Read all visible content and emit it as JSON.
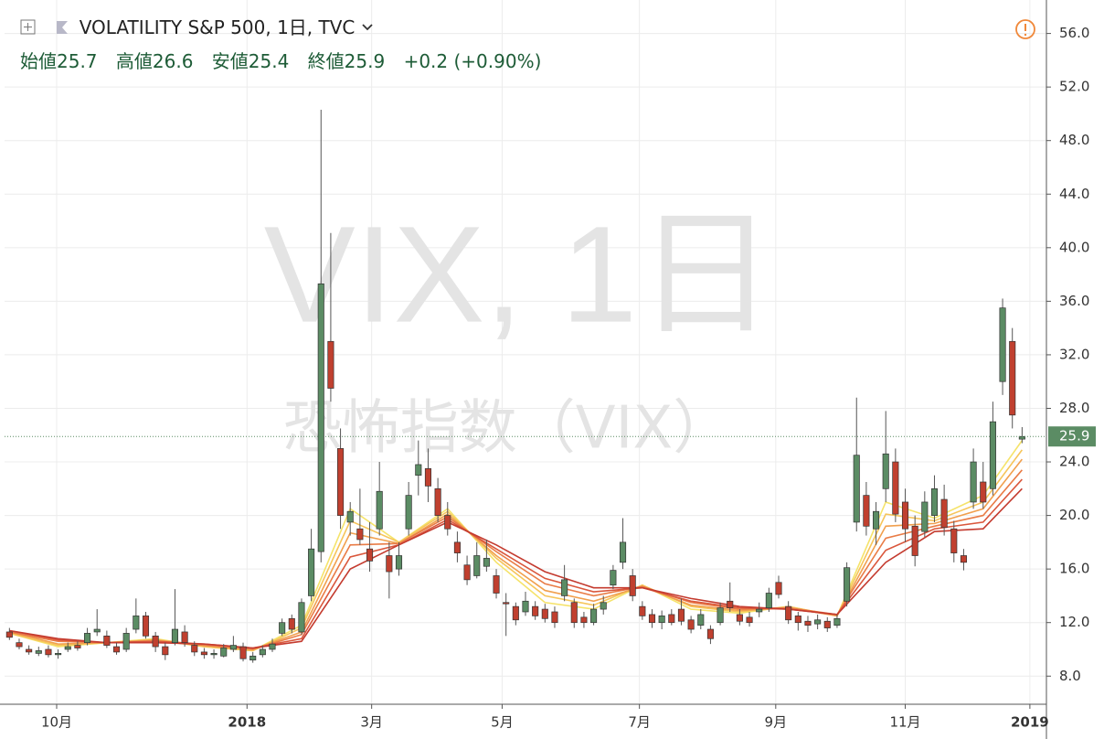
{
  "chart_data": {
    "type": "candlestick",
    "title": "VOLATILITY S&P 500, 1日, TVC",
    "watermark": "VIX, 1日",
    "watermark_sub": "恐怖指数（VIX）",
    "ohlc_legend": {
      "open_label": "始値",
      "open": 25.7,
      "high_label": "高値",
      "high": 26.6,
      "low_label": "安値",
      "low": 25.4,
      "close_label": "終値",
      "close": 25.9,
      "change": "+0.2",
      "change_pct": "(+0.90%)"
    },
    "up_color": "#5b8c64",
    "down_color": "#c0402f",
    "grid": true,
    "xlim": [
      0,
      107
    ],
    "xticks": [
      {
        "value": 5.35,
        "label": "10月"
      },
      {
        "value": 24.9,
        "label": "2018"
      },
      {
        "value": 37.7,
        "label": "3月"
      },
      {
        "value": 51.1,
        "label": "5月"
      },
      {
        "value": 65.2,
        "label": "7月"
      },
      {
        "value": 79.2,
        "label": "9月"
      },
      {
        "value": 92.5,
        "label": "11月"
      },
      {
        "value": 105.3,
        "label": "2019"
      }
    ],
    "ylim": [
      5.9,
      58.5
    ],
    "yticks": [
      {
        "value": 8,
        "label": "8.0"
      },
      {
        "value": 12,
        "label": "12.0"
      },
      {
        "value": 16,
        "label": "16.0"
      },
      {
        "value": 20,
        "label": "20.0"
      },
      {
        "value": 24,
        "label": "24.0"
      },
      {
        "value": 28,
        "label": "28.0"
      },
      {
        "value": 32,
        "label": "32.0"
      },
      {
        "value": 36,
        "label": "36.0"
      },
      {
        "value": 40,
        "label": "40.0"
      },
      {
        "value": 44,
        "label": "44.0"
      },
      {
        "value": 48,
        "label": "48.0"
      },
      {
        "value": 52,
        "label": "52.0"
      },
      {
        "value": 56,
        "label": "56.0"
      }
    ],
    "candles": [
      [
        11.3,
        11.6,
        10.7,
        10.9
      ],
      [
        10.5,
        10.8,
        10.0,
        10.2
      ],
      [
        10.0,
        10.3,
        9.6,
        9.8
      ],
      [
        9.7,
        10.2,
        9.5,
        9.9
      ],
      [
        10.0,
        10.3,
        9.4,
        9.6
      ],
      [
        9.6,
        10.0,
        9.3,
        9.7
      ],
      [
        10.0,
        10.5,
        9.8,
        10.2
      ],
      [
        10.3,
        10.6,
        9.9,
        10.1
      ],
      [
        10.5,
        11.6,
        10.3,
        11.2
      ],
      [
        11.3,
        13.0,
        11.0,
        11.5
      ],
      [
        11.0,
        11.4,
        10.1,
        10.3
      ],
      [
        10.2,
        10.5,
        9.6,
        9.8
      ],
      [
        10.0,
        11.6,
        9.8,
        11.2
      ],
      [
        11.5,
        13.8,
        11.2,
        12.5
      ],
      [
        12.5,
        12.8,
        10.8,
        11.0
      ],
      [
        11.0,
        11.3,
        9.8,
        10.2
      ],
      [
        10.2,
        10.5,
        9.2,
        9.6
      ],
      [
        10.5,
        14.5,
        10.3,
        11.5
      ],
      [
        11.3,
        11.8,
        10.2,
        10.5
      ],
      [
        10.3,
        10.6,
        9.5,
        9.8
      ],
      [
        9.8,
        10.1,
        9.3,
        9.6
      ],
      [
        9.6,
        10.0,
        9.3,
        9.7
      ],
      [
        9.5,
        10.4,
        9.4,
        10.1
      ],
      [
        10.0,
        11.0,
        9.8,
        10.3
      ],
      [
        10.2,
        10.5,
        9.1,
        9.3
      ],
      [
        9.2,
        9.8,
        9.0,
        9.5
      ],
      [
        9.6,
        10.3,
        9.4,
        10.0
      ],
      [
        10.0,
        10.8,
        9.8,
        10.4
      ],
      [
        11.2,
        12.3,
        11.0,
        12.0
      ],
      [
        12.3,
        12.6,
        11.2,
        11.5
      ],
      [
        11.3,
        13.8,
        11.1,
        13.5
      ],
      [
        14.0,
        19.0,
        13.6,
        17.5
      ],
      [
        17.3,
        50.3,
        16.5,
        37.3
      ],
      [
        33.0,
        41.1,
        28.5,
        29.5
      ],
      [
        25.0,
        26.5,
        19.0,
        20.0
      ],
      [
        19.5,
        21.0,
        18.5,
        20.3
      ],
      [
        19.0,
        22.0,
        17.8,
        18.2
      ],
      [
        17.5,
        19.5,
        15.8,
        16.6
      ],
      [
        19.0,
        24.0,
        18.5,
        21.8
      ],
      [
        17.0,
        18.0,
        13.8,
        15.8
      ],
      [
        16.0,
        18.0,
        15.5,
        17.0
      ],
      [
        19.0,
        22.5,
        18.5,
        21.5
      ],
      [
        23.0,
        25.6,
        21.5,
        23.8
      ],
      [
        23.5,
        25.0,
        21.0,
        22.2
      ],
      [
        22.0,
        22.8,
        19.5,
        20.0
      ],
      [
        20.0,
        21.0,
        18.5,
        19.0
      ],
      [
        18.0,
        18.8,
        16.5,
        17.2
      ],
      [
        16.3,
        17.0,
        14.8,
        15.2
      ],
      [
        15.5,
        18.0,
        15.3,
        17.0
      ],
      [
        16.2,
        18.2,
        15.8,
        16.8
      ],
      [
        15.5,
        16.0,
        13.8,
        14.2
      ],
      [
        13.5,
        14.2,
        11.0,
        13.4
      ],
      [
        13.2,
        13.5,
        11.8,
        12.2
      ],
      [
        12.8,
        14.3,
        12.5,
        13.6
      ],
      [
        13.2,
        13.6,
        12.2,
        12.5
      ],
      [
        13.0,
        13.4,
        12.0,
        12.3
      ],
      [
        12.8,
        13.2,
        11.6,
        12.0
      ],
      [
        14.0,
        16.3,
        13.6,
        15.2
      ],
      [
        13.5,
        13.8,
        11.6,
        12.0
      ],
      [
        12.4,
        12.8,
        11.6,
        12.0
      ],
      [
        12.0,
        13.4,
        11.8,
        13.0
      ],
      [
        13.0,
        14.0,
        12.6,
        13.5
      ],
      [
        14.8,
        16.3,
        14.5,
        15.9
      ],
      [
        16.5,
        19.8,
        16.0,
        18.0
      ],
      [
        15.5,
        16.0,
        13.6,
        14.0
      ],
      [
        13.2,
        13.6,
        12.2,
        12.5
      ],
      [
        12.6,
        13.0,
        11.6,
        12.0
      ],
      [
        12.0,
        12.9,
        11.5,
        12.5
      ],
      [
        12.6,
        13.0,
        11.8,
        12.0
      ],
      [
        13.0,
        13.8,
        11.8,
        12.1
      ],
      [
        12.2,
        12.5,
        11.2,
        11.5
      ],
      [
        11.8,
        13.0,
        11.5,
        12.6
      ],
      [
        11.5,
        11.8,
        10.4,
        10.8
      ],
      [
        12.0,
        13.5,
        11.8,
        13.1
      ],
      [
        13.6,
        15.0,
        12.8,
        13.1
      ],
      [
        12.6,
        13.0,
        11.8,
        12.1
      ],
      [
        12.4,
        12.8,
        11.7,
        12.0
      ],
      [
        12.8,
        13.5,
        12.4,
        13.0
      ],
      [
        13.1,
        14.6,
        12.8,
        14.2
      ],
      [
        15.0,
        15.5,
        13.8,
        14.1
      ],
      [
        13.2,
        13.6,
        11.9,
        12.2
      ],
      [
        12.5,
        12.8,
        11.4,
        12.0
      ],
      [
        12.1,
        12.5,
        11.3,
        11.8
      ],
      [
        11.9,
        12.6,
        11.5,
        12.2
      ],
      [
        12.1,
        12.4,
        11.3,
        11.6
      ],
      [
        11.8,
        12.6,
        11.6,
        12.3
      ],
      [
        13.6,
        16.5,
        13.2,
        16.1
      ],
      [
        19.5,
        28.8,
        18.8,
        24.5
      ],
      [
        21.5,
        22.5,
        18.5,
        19.2
      ],
      [
        19.0,
        21.0,
        17.8,
        20.3
      ],
      [
        22.0,
        27.8,
        21.0,
        24.6
      ],
      [
        24.0,
        25.0,
        19.5,
        20.1
      ],
      [
        21.0,
        22.0,
        18.0,
        19.0
      ],
      [
        19.2,
        20.0,
        16.2,
        17.0
      ],
      [
        18.8,
        21.8,
        18.4,
        21.0
      ],
      [
        20.0,
        23.0,
        19.5,
        22.0
      ],
      [
        21.2,
        22.3,
        18.5,
        19.1
      ],
      [
        19.0,
        19.6,
        16.5,
        17.2
      ],
      [
        17.0,
        17.5,
        15.9,
        16.5
      ],
      [
        21.0,
        25.0,
        20.5,
        24.0
      ],
      [
        22.5,
        24.0,
        20.5,
        21.0
      ],
      [
        22.0,
        28.5,
        21.5,
        27.0
      ],
      [
        30.0,
        36.2,
        29.0,
        35.5
      ],
      [
        33.0,
        34.0,
        26.5,
        27.5
      ],
      [
        25.7,
        26.6,
        25.4,
        25.9
      ]
    ],
    "ribbon": {
      "x": [
        0,
        5,
        10,
        15,
        20,
        25,
        30,
        35,
        40,
        45,
        50,
        55,
        60,
        65,
        70,
        75,
        80,
        85,
        90,
        95,
        100,
        104
      ],
      "lines": [
        {
          "color": "#f5e36a",
          "values": [
            11.2,
            10.2,
            10.5,
            10.8,
            10.2,
            9.9,
            11.8,
            20.5,
            18.0,
            20.5,
            16.5,
            13.5,
            13.0,
            14.8,
            13.0,
            12.7,
            13.2,
            12.5,
            21.0,
            19.8,
            21.5,
            25.6
          ]
        },
        {
          "color": "#f6c55a",
          "values": [
            11.2,
            10.3,
            10.5,
            10.7,
            10.2,
            9.9,
            11.6,
            19.6,
            18.0,
            20.3,
            16.8,
            14.0,
            13.3,
            14.8,
            13.2,
            12.8,
            13.2,
            12.5,
            20.1,
            19.6,
            21.0,
            24.9
          ]
        },
        {
          "color": "#f1a04e",
          "values": [
            11.3,
            10.4,
            10.5,
            10.7,
            10.3,
            10.0,
            11.3,
            18.7,
            17.9,
            20.1,
            17.0,
            14.4,
            13.6,
            14.7,
            13.3,
            12.9,
            13.1,
            12.5,
            19.2,
            19.4,
            20.5,
            24.2
          ]
        },
        {
          "color": "#e97c46",
          "values": [
            11.3,
            10.6,
            10.5,
            10.6,
            10.3,
            10.0,
            11.1,
            17.8,
            17.9,
            19.9,
            17.3,
            14.9,
            14.0,
            14.7,
            13.5,
            13.0,
            13.1,
            12.6,
            18.3,
            19.2,
            20.0,
            23.4
          ]
        },
        {
          "color": "#da573c",
          "values": [
            11.4,
            10.7,
            10.5,
            10.6,
            10.4,
            10.1,
            10.8,
            16.9,
            17.8,
            19.7,
            17.5,
            15.3,
            14.3,
            14.6,
            13.6,
            13.1,
            13.0,
            12.6,
            17.4,
            19.0,
            19.5,
            22.7
          ]
        },
        {
          "color": "#c43b2f",
          "values": [
            11.4,
            10.8,
            10.5,
            10.5,
            10.4,
            10.1,
            10.6,
            16.0,
            17.8,
            19.5,
            17.8,
            15.8,
            14.6,
            14.6,
            13.8,
            13.2,
            13.0,
            12.6,
            16.5,
            18.8,
            19.0,
            22.0
          ]
        }
      ]
    }
  }
}
